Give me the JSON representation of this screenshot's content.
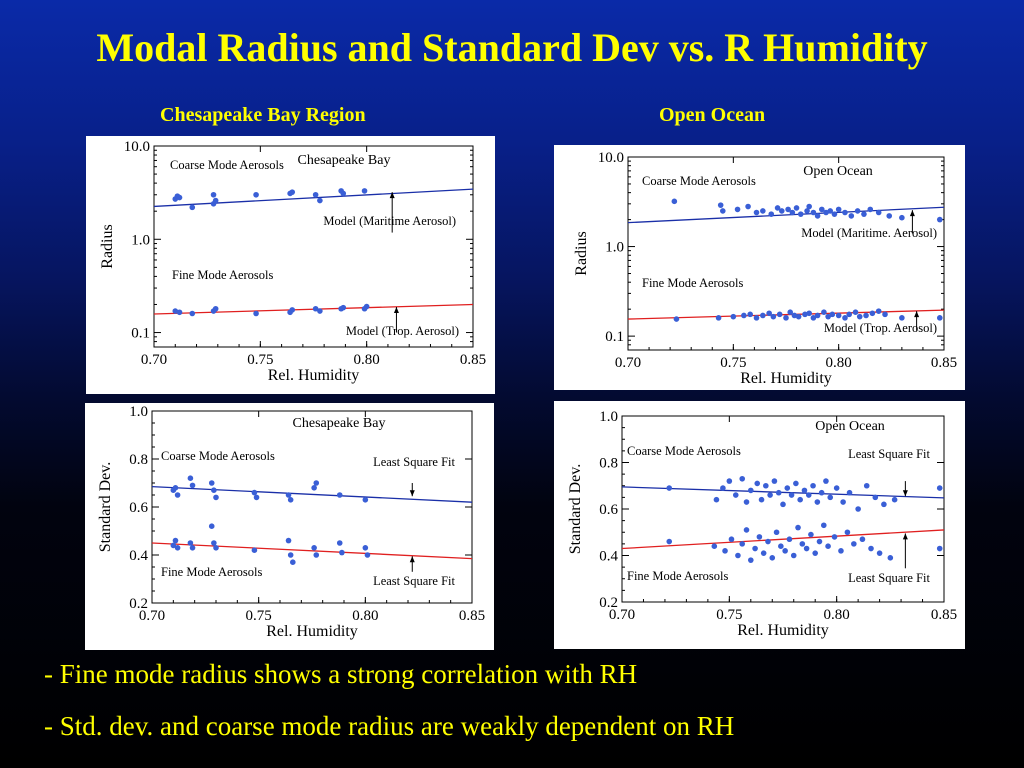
{
  "slide": {
    "title": "Modal Radius and Standard Dev vs. R Humidity",
    "region_left": "Chesapeake Bay Region",
    "region_right": "Open Ocean",
    "bullets": [
      "- Fine mode radius shows a strong correlation with RH",
      "- Std. dev. and coarse mode radius are weakly dependent on RH"
    ]
  },
  "chart_data": [
    {
      "id": "radius-chesapeake",
      "type": "scatter",
      "title": "Chesapeake Bay",
      "xlabel": "Rel. Humidity",
      "ylabel": "Radius",
      "xlim": [
        0.7,
        0.85
      ],
      "ylim": [
        0.07,
        10.0
      ],
      "yscale": "log",
      "xticks": [
        "0.70",
        "0.75",
        "0.80",
        "0.85"
      ],
      "yticks": [
        "10.0",
        "1.0",
        "0.1"
      ],
      "annotations": [
        "Coarse Mode Aerosols",
        "Fine Mode Aerosols",
        "Model (Maritime Aerosol)",
        "Model (Trop. Aerosol)"
      ],
      "series": [
        {
          "color": "#3a5fd6",
          "points": [
            [
              0.71,
              2.7
            ],
            [
              0.711,
              2.9
            ],
            [
              0.712,
              2.8
            ],
            [
              0.718,
              2.2
            ],
            [
              0.728,
              2.4
            ],
            [
              0.728,
              3.0
            ],
            [
              0.729,
              2.6
            ],
            [
              0.748,
              3.0
            ],
            [
              0.764,
              3.1
            ],
            [
              0.765,
              3.2
            ],
            [
              0.776,
              3.0
            ],
            [
              0.778,
              2.6
            ],
            [
              0.788,
              3.3
            ],
            [
              0.789,
              3.1
            ],
            [
              0.799,
              3.3
            ]
          ]
        },
        {
          "color": "#3a5fd6",
          "points": [
            [
              0.71,
              0.17
            ],
            [
              0.712,
              0.165
            ],
            [
              0.718,
              0.16
            ],
            [
              0.728,
              0.17
            ],
            [
              0.729,
              0.18
            ],
            [
              0.748,
              0.16
            ],
            [
              0.764,
              0.165
            ],
            [
              0.765,
              0.175
            ],
            [
              0.776,
              0.18
            ],
            [
              0.778,
              0.17
            ],
            [
              0.788,
              0.18
            ],
            [
              0.789,
              0.185
            ],
            [
              0.799,
              0.18
            ],
            [
              0.8,
              0.19
            ]
          ]
        }
      ],
      "fits": [
        {
          "color": "#1a2fa8",
          "x": [
            0.7,
            0.85
          ],
          "y": [
            2.25,
            3.45
          ]
        },
        {
          "color": "#e02020",
          "x": [
            0.7,
            0.85
          ],
          "y": [
            0.158,
            0.2
          ]
        }
      ],
      "arrows": [
        {
          "x": 0.812,
          "from": 1.18,
          "to": 3.2
        },
        {
          "x": 0.814,
          "from": 0.1,
          "to": 0.188
        }
      ]
    },
    {
      "id": "radius-open-ocean",
      "type": "scatter",
      "title": "Open Ocean",
      "xlabel": "Rel. Humidity",
      "ylabel": "Radius",
      "xlim": [
        0.7,
        0.85
      ],
      "ylim": [
        0.07,
        10.0
      ],
      "yscale": "log",
      "xticks": [
        "0.70",
        "0.75",
        "0.80",
        "0.85"
      ],
      "yticks": [
        "10.0",
        "1.0",
        "0.1"
      ],
      "annotations": [
        "Coarse Mode Aerosols",
        "Fine Mode Aerosols",
        "Model (Maritime. Aerosol)",
        "Model (Trop. Aerosol)"
      ],
      "series": [
        {
          "color": "#3a5fd6",
          "points": [
            [
              0.722,
              3.2
            ],
            [
              0.744,
              2.9
            ],
            [
              0.745,
              2.5
            ],
            [
              0.752,
              2.6
            ],
            [
              0.757,
              2.8
            ],
            [
              0.761,
              2.4
            ],
            [
              0.764,
              2.5
            ],
            [
              0.768,
              2.3
            ],
            [
              0.771,
              2.7
            ],
            [
              0.773,
              2.5
            ],
            [
              0.776,
              2.6
            ],
            [
              0.778,
              2.4
            ],
            [
              0.78,
              2.7
            ],
            [
              0.782,
              2.3
            ],
            [
              0.785,
              2.5
            ],
            [
              0.786,
              2.8
            ],
            [
              0.788,
              2.4
            ],
            [
              0.79,
              2.2
            ],
            [
              0.792,
              2.6
            ],
            [
              0.794,
              2.4
            ],
            [
              0.796,
              2.5
            ],
            [
              0.798,
              2.3
            ],
            [
              0.8,
              2.6
            ],
            [
              0.803,
              2.4
            ],
            [
              0.806,
              2.2
            ],
            [
              0.809,
              2.5
            ],
            [
              0.812,
              2.3
            ],
            [
              0.815,
              2.6
            ],
            [
              0.819,
              2.4
            ],
            [
              0.824,
              2.2
            ],
            [
              0.83,
              2.1
            ],
            [
              0.848,
              2.0
            ]
          ]
        },
        {
          "color": "#3a5fd6",
          "points": [
            [
              0.723,
              0.155
            ],
            [
              0.743,
              0.16
            ],
            [
              0.75,
              0.165
            ],
            [
              0.755,
              0.17
            ],
            [
              0.758,
              0.175
            ],
            [
              0.761,
              0.16
            ],
            [
              0.764,
              0.17
            ],
            [
              0.767,
              0.18
            ],
            [
              0.769,
              0.165
            ],
            [
              0.772,
              0.175
            ],
            [
              0.775,
              0.16
            ],
            [
              0.777,
              0.185
            ],
            [
              0.779,
              0.17
            ],
            [
              0.781,
              0.165
            ],
            [
              0.784,
              0.175
            ],
            [
              0.786,
              0.18
            ],
            [
              0.788,
              0.16
            ],
            [
              0.79,
              0.17
            ],
            [
              0.793,
              0.185
            ],
            [
              0.795,
              0.165
            ],
            [
              0.797,
              0.175
            ],
            [
              0.8,
              0.17
            ],
            [
              0.803,
              0.16
            ],
            [
              0.805,
              0.175
            ],
            [
              0.808,
              0.185
            ],
            [
              0.81,
              0.165
            ],
            [
              0.813,
              0.17
            ],
            [
              0.816,
              0.18
            ],
            [
              0.819,
              0.19
            ],
            [
              0.822,
              0.175
            ],
            [
              0.83,
              0.16
            ],
            [
              0.848,
              0.16
            ]
          ]
        }
      ],
      "fits": [
        {
          "color": "#1a2fa8",
          "x": [
            0.7,
            0.85
          ],
          "y": [
            1.85,
            2.75
          ]
        },
        {
          "color": "#e02020",
          "x": [
            0.7,
            0.85
          ],
          "y": [
            0.155,
            0.195
          ]
        }
      ],
      "arrows": [
        {
          "x": 0.835,
          "from": 1.4,
          "to": 2.55
        },
        {
          "x": 0.837,
          "from": 0.115,
          "to": 0.19
        }
      ]
    },
    {
      "id": "stddev-chesapeake",
      "type": "scatter",
      "title": "Chesapeake Bay",
      "xlabel": "Rel. Humidity",
      "ylabel": "Standard Dev.",
      "xlim": [
        0.7,
        0.85
      ],
      "ylim": [
        0.2,
        1.0
      ],
      "yscale": "linear",
      "xticks": [
        "0.70",
        "0.75",
        "0.80",
        "0.85"
      ],
      "yticks": [
        "1.0",
        "0.8",
        "0.6",
        "0.4",
        "0.2"
      ],
      "annotations": [
        "Coarse Mode Aerosols",
        "Fine Mode Aerosols",
        "Least Square Fit",
        "Least Square Fit"
      ],
      "series": [
        {
          "color": "#3a5fd6",
          "points": [
            [
              0.71,
              0.67
            ],
            [
              0.711,
              0.68
            ],
            [
              0.712,
              0.65
            ],
            [
              0.718,
              0.72
            ],
            [
              0.719,
              0.69
            ],
            [
              0.728,
              0.7
            ],
            [
              0.729,
              0.67
            ],
            [
              0.73,
              0.64
            ],
            [
              0.748,
              0.66
            ],
            [
              0.749,
              0.64
            ],
            [
              0.764,
              0.65
            ],
            [
              0.765,
              0.63
            ],
            [
              0.776,
              0.68
            ],
            [
              0.777,
              0.7
            ],
            [
              0.788,
              0.65
            ],
            [
              0.8,
              0.63
            ]
          ]
        },
        {
          "color": "#3a5fd6",
          "points": [
            [
              0.71,
              0.44
            ],
            [
              0.711,
              0.46
            ],
            [
              0.712,
              0.43
            ],
            [
              0.718,
              0.45
            ],
            [
              0.719,
              0.43
            ],
            [
              0.728,
              0.52
            ],
            [
              0.729,
              0.45
            ],
            [
              0.73,
              0.43
            ],
            [
              0.748,
              0.42
            ],
            [
              0.764,
              0.46
            ],
            [
              0.765,
              0.4
            ],
            [
              0.766,
              0.37
            ],
            [
              0.776,
              0.43
            ],
            [
              0.777,
              0.4
            ],
            [
              0.788,
              0.45
            ],
            [
              0.789,
              0.41
            ],
            [
              0.8,
              0.43
            ],
            [
              0.801,
              0.4
            ]
          ]
        }
      ],
      "fits": [
        {
          "color": "#1a2fa8",
          "x": [
            0.7,
            0.85
          ],
          "y": [
            0.685,
            0.62
          ]
        },
        {
          "color": "#e02020",
          "x": [
            0.7,
            0.85
          ],
          "y": [
            0.45,
            0.385
          ]
        }
      ],
      "arrows": [
        {
          "x": 0.822,
          "from": 0.7,
          "to": 0.645
        },
        {
          "x": 0.822,
          "from": 0.33,
          "to": 0.395
        }
      ]
    },
    {
      "id": "stddev-open-ocean",
      "type": "scatter",
      "title": "Open Ocean",
      "xlabel": "Rel. Humidity",
      "ylabel": "Standard Dev.",
      "xlim": [
        0.7,
        0.85
      ],
      "ylim": [
        0.2,
        1.0
      ],
      "yscale": "linear",
      "xticks": [
        "0.70",
        "0.75",
        "0.80",
        "0.85"
      ],
      "yticks": [
        "1.0",
        "0.8",
        "0.6",
        "0.4",
        "0.2"
      ],
      "annotations": [
        "Coarse Mode Aerosols",
        "Fine Mode Aerosols",
        "Least Square Fit",
        "Least Square Fit"
      ],
      "series": [
        {
          "color": "#3a5fd6",
          "points": [
            [
              0.722,
              0.69
            ],
            [
              0.744,
              0.64
            ],
            [
              0.747,
              0.69
            ],
            [
              0.75,
              0.72
            ],
            [
              0.753,
              0.66
            ],
            [
              0.756,
              0.73
            ],
            [
              0.758,
              0.63
            ],
            [
              0.76,
              0.68
            ],
            [
              0.763,
              0.71
            ],
            [
              0.765,
              0.64
            ],
            [
              0.767,
              0.7
            ],
            [
              0.769,
              0.66
            ],
            [
              0.771,
              0.72
            ],
            [
              0.773,
              0.67
            ],
            [
              0.775,
              0.62
            ],
            [
              0.777,
              0.69
            ],
            [
              0.779,
              0.66
            ],
            [
              0.781,
              0.71
            ],
            [
              0.783,
              0.64
            ],
            [
              0.785,
              0.68
            ],
            [
              0.787,
              0.66
            ],
            [
              0.789,
              0.7
            ],
            [
              0.791,
              0.63
            ],
            [
              0.793,
              0.67
            ],
            [
              0.795,
              0.72
            ],
            [
              0.797,
              0.65
            ],
            [
              0.8,
              0.69
            ],
            [
              0.803,
              0.63
            ],
            [
              0.806,
              0.67
            ],
            [
              0.81,
              0.6
            ],
            [
              0.814,
              0.7
            ],
            [
              0.818,
              0.65
            ],
            [
              0.822,
              0.62
            ],
            [
              0.827,
              0.64
            ],
            [
              0.848,
              0.69
            ]
          ]
        },
        {
          "color": "#3a5fd6",
          "points": [
            [
              0.722,
              0.46
            ],
            [
              0.743,
              0.44
            ],
            [
              0.748,
              0.42
            ],
            [
              0.751,
              0.47
            ],
            [
              0.754,
              0.4
            ],
            [
              0.756,
              0.45
            ],
            [
              0.758,
              0.51
            ],
            [
              0.76,
              0.38
            ],
            [
              0.762,
              0.43
            ],
            [
              0.764,
              0.48
            ],
            [
              0.766,
              0.41
            ],
            [
              0.768,
              0.46
            ],
            [
              0.77,
              0.39
            ],
            [
              0.772,
              0.5
            ],
            [
              0.774,
              0.44
            ],
            [
              0.776,
              0.42
            ],
            [
              0.778,
              0.47
            ],
            [
              0.78,
              0.4
            ],
            [
              0.782,
              0.52
            ],
            [
              0.784,
              0.45
            ],
            [
              0.786,
              0.43
            ],
            [
              0.788,
              0.49
            ],
            [
              0.79,
              0.41
            ],
            [
              0.792,
              0.46
            ],
            [
              0.794,
              0.53
            ],
            [
              0.796,
              0.44
            ],
            [
              0.799,
              0.48
            ],
            [
              0.802,
              0.42
            ],
            [
              0.805,
              0.5
            ],
            [
              0.808,
              0.45
            ],
            [
              0.812,
              0.47
            ],
            [
              0.816,
              0.43
            ],
            [
              0.82,
              0.41
            ],
            [
              0.825,
              0.39
            ],
            [
              0.848,
              0.43
            ]
          ]
        }
      ],
      "fits": [
        {
          "color": "#1a2fa8",
          "x": [
            0.7,
            0.85
          ],
          "y": [
            0.695,
            0.648
          ]
        },
        {
          "color": "#e02020",
          "x": [
            0.7,
            0.85
          ],
          "y": [
            0.43,
            0.51
          ]
        }
      ],
      "arrows": [
        {
          "x": 0.832,
          "from": 0.72,
          "to": 0.655
        },
        {
          "x": 0.832,
          "from": 0.345,
          "to": 0.495
        }
      ]
    }
  ]
}
